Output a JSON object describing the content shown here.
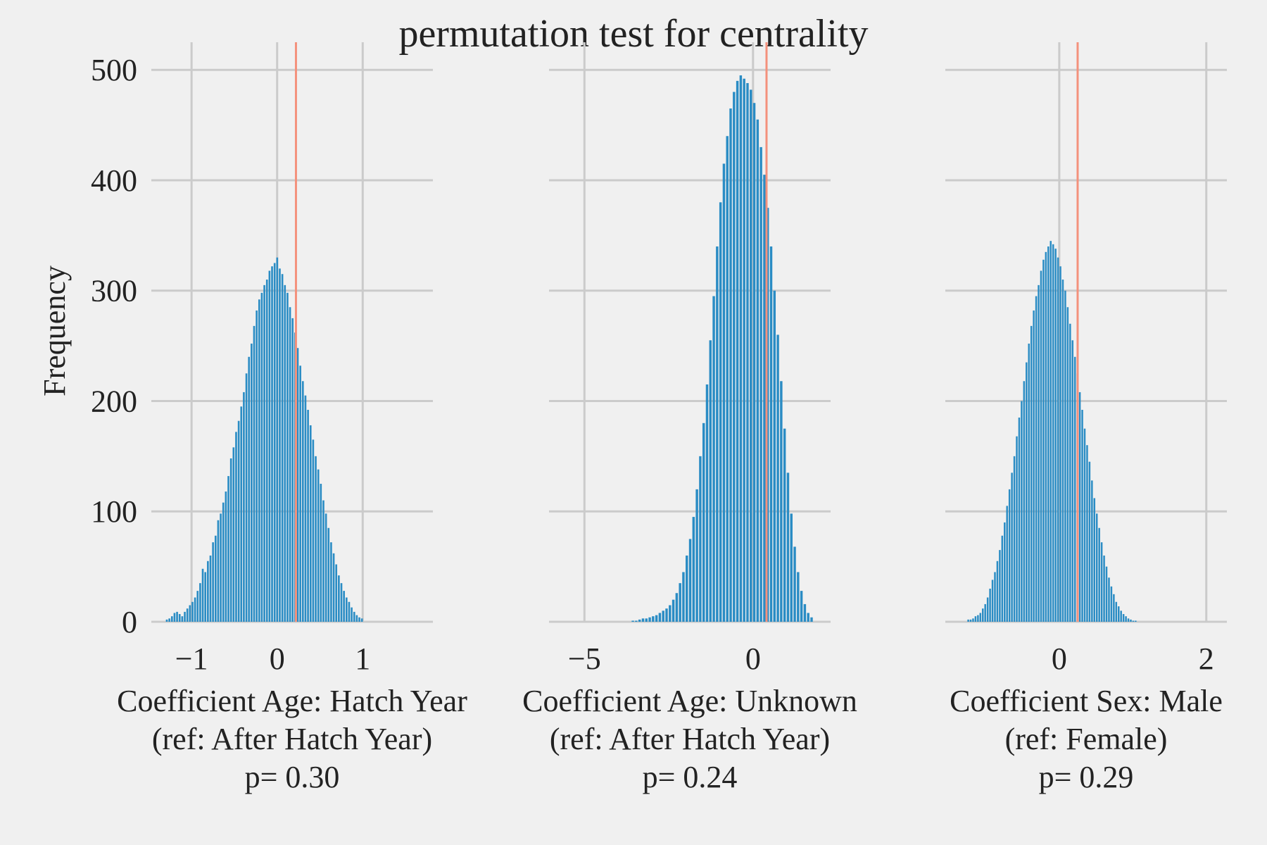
{
  "chart_data": {
    "type": "bar",
    "title": "permutation test for centrality",
    "ylabel": "Frequency",
    "ylim": [
      0,
      525
    ],
    "yticks": [
      0,
      100,
      200,
      300,
      400,
      500
    ],
    "grid": true,
    "colors": {
      "bars": "#2a8cc4",
      "observed": "#f4917c",
      "grid": "#cbcbcb",
      "background": "#f0f0f0"
    },
    "panels": [
      {
        "xlabel": [
          "Coefficient Age: Hatch Year",
          "(ref: After Hatch Year)",
          "p= 0.30"
        ],
        "xticks": [
          -1,
          0,
          1
        ],
        "xtick_labels": [
          "−1",
          "0",
          "1"
        ],
        "xlim": [
          -1.47,
          1.82
        ],
        "observed": 0.22,
        "series": [
          {
            "bin_start": -1.3,
            "bin_width": 0.03,
            "values": [
              2,
              3,
              5,
              8,
              9,
              7,
              5,
              9,
              12,
              15,
              18,
              22,
              28,
              35,
              48,
              45,
              55,
              60,
              72,
              78,
              92,
              98,
              108,
              118,
              132,
              148,
              158,
              172,
              182,
              195,
              208,
              225,
              240,
              252,
              268,
              282,
              292,
              298,
              305,
              310,
              318,
              322,
              325,
              330,
              320,
              315,
              305,
              298,
              285,
              275,
              262,
              248,
              232,
              218,
              205,
              192,
              178,
              165,
              150,
              138,
              125,
              110,
              98,
              85,
              72,
              62,
              52,
              42,
              35,
              28,
              22,
              18,
              13,
              9,
              6,
              4,
              3
            ]
          }
        ]
      },
      {
        "xlabel": [
          "Coefficient Age: Unknown",
          "(ref: After Hatch Year)",
          "p= 0.24"
        ],
        "xticks": [
          -5,
          0
        ],
        "xtick_labels": [
          "−5",
          "0"
        ],
        "xlim": [
          -6.05,
          2.3
        ],
        "observed": 0.4,
        "series": [
          {
            "bin_start": -3.6,
            "bin_width": 0.1,
            "values": [
              1,
              1,
              2,
              3,
              3,
              4,
              5,
              6,
              8,
              10,
              12,
              15,
              20,
              26,
              35,
              45,
              60,
              75,
              95,
              120,
              150,
              180,
              215,
              255,
              295,
              340,
              380,
              415,
              440,
              465,
              480,
              490,
              495,
              492,
              488,
              482,
              470,
              455,
              430,
              405,
              375,
              340,
              300,
              260,
              218,
              175,
              135,
              98,
              68,
              45,
              28,
              16,
              8,
              4
            ]
          }
        ]
      },
      {
        "xlabel": [
          "Coefficient Sex: Male",
          "(ref: Female)",
          "p= 0.29"
        ],
        "xticks": [
          0,
          2
        ],
        "xtick_labels": [
          "0",
          "2"
        ],
        "xlim": [
          -1.55,
          2.28
        ],
        "observed": 0.25,
        "series": [
          {
            "bin_start": -1.25,
            "bin_width": 0.033,
            "values": [
              2,
              2,
              3,
              5,
              6,
              8,
              12,
              16,
              22,
              30,
              38,
              45,
              55,
              65,
              78,
              90,
              105,
              120,
              135,
              150,
              168,
              185,
              200,
              218,
              235,
              252,
              268,
              282,
              295,
              305,
              318,
              328,
              335,
              340,
              345,
              342,
              338,
              330,
              322,
              310,
              300,
              285,
              270,
              255,
              240,
              225,
              208,
              192,
              175,
              160,
              145,
              128,
              112,
              98,
              85,
              72,
              60,
              50,
              40,
              32,
              25,
              18,
              14,
              10,
              7,
              5,
              3,
              2,
              1,
              1
            ]
          }
        ]
      }
    ]
  }
}
